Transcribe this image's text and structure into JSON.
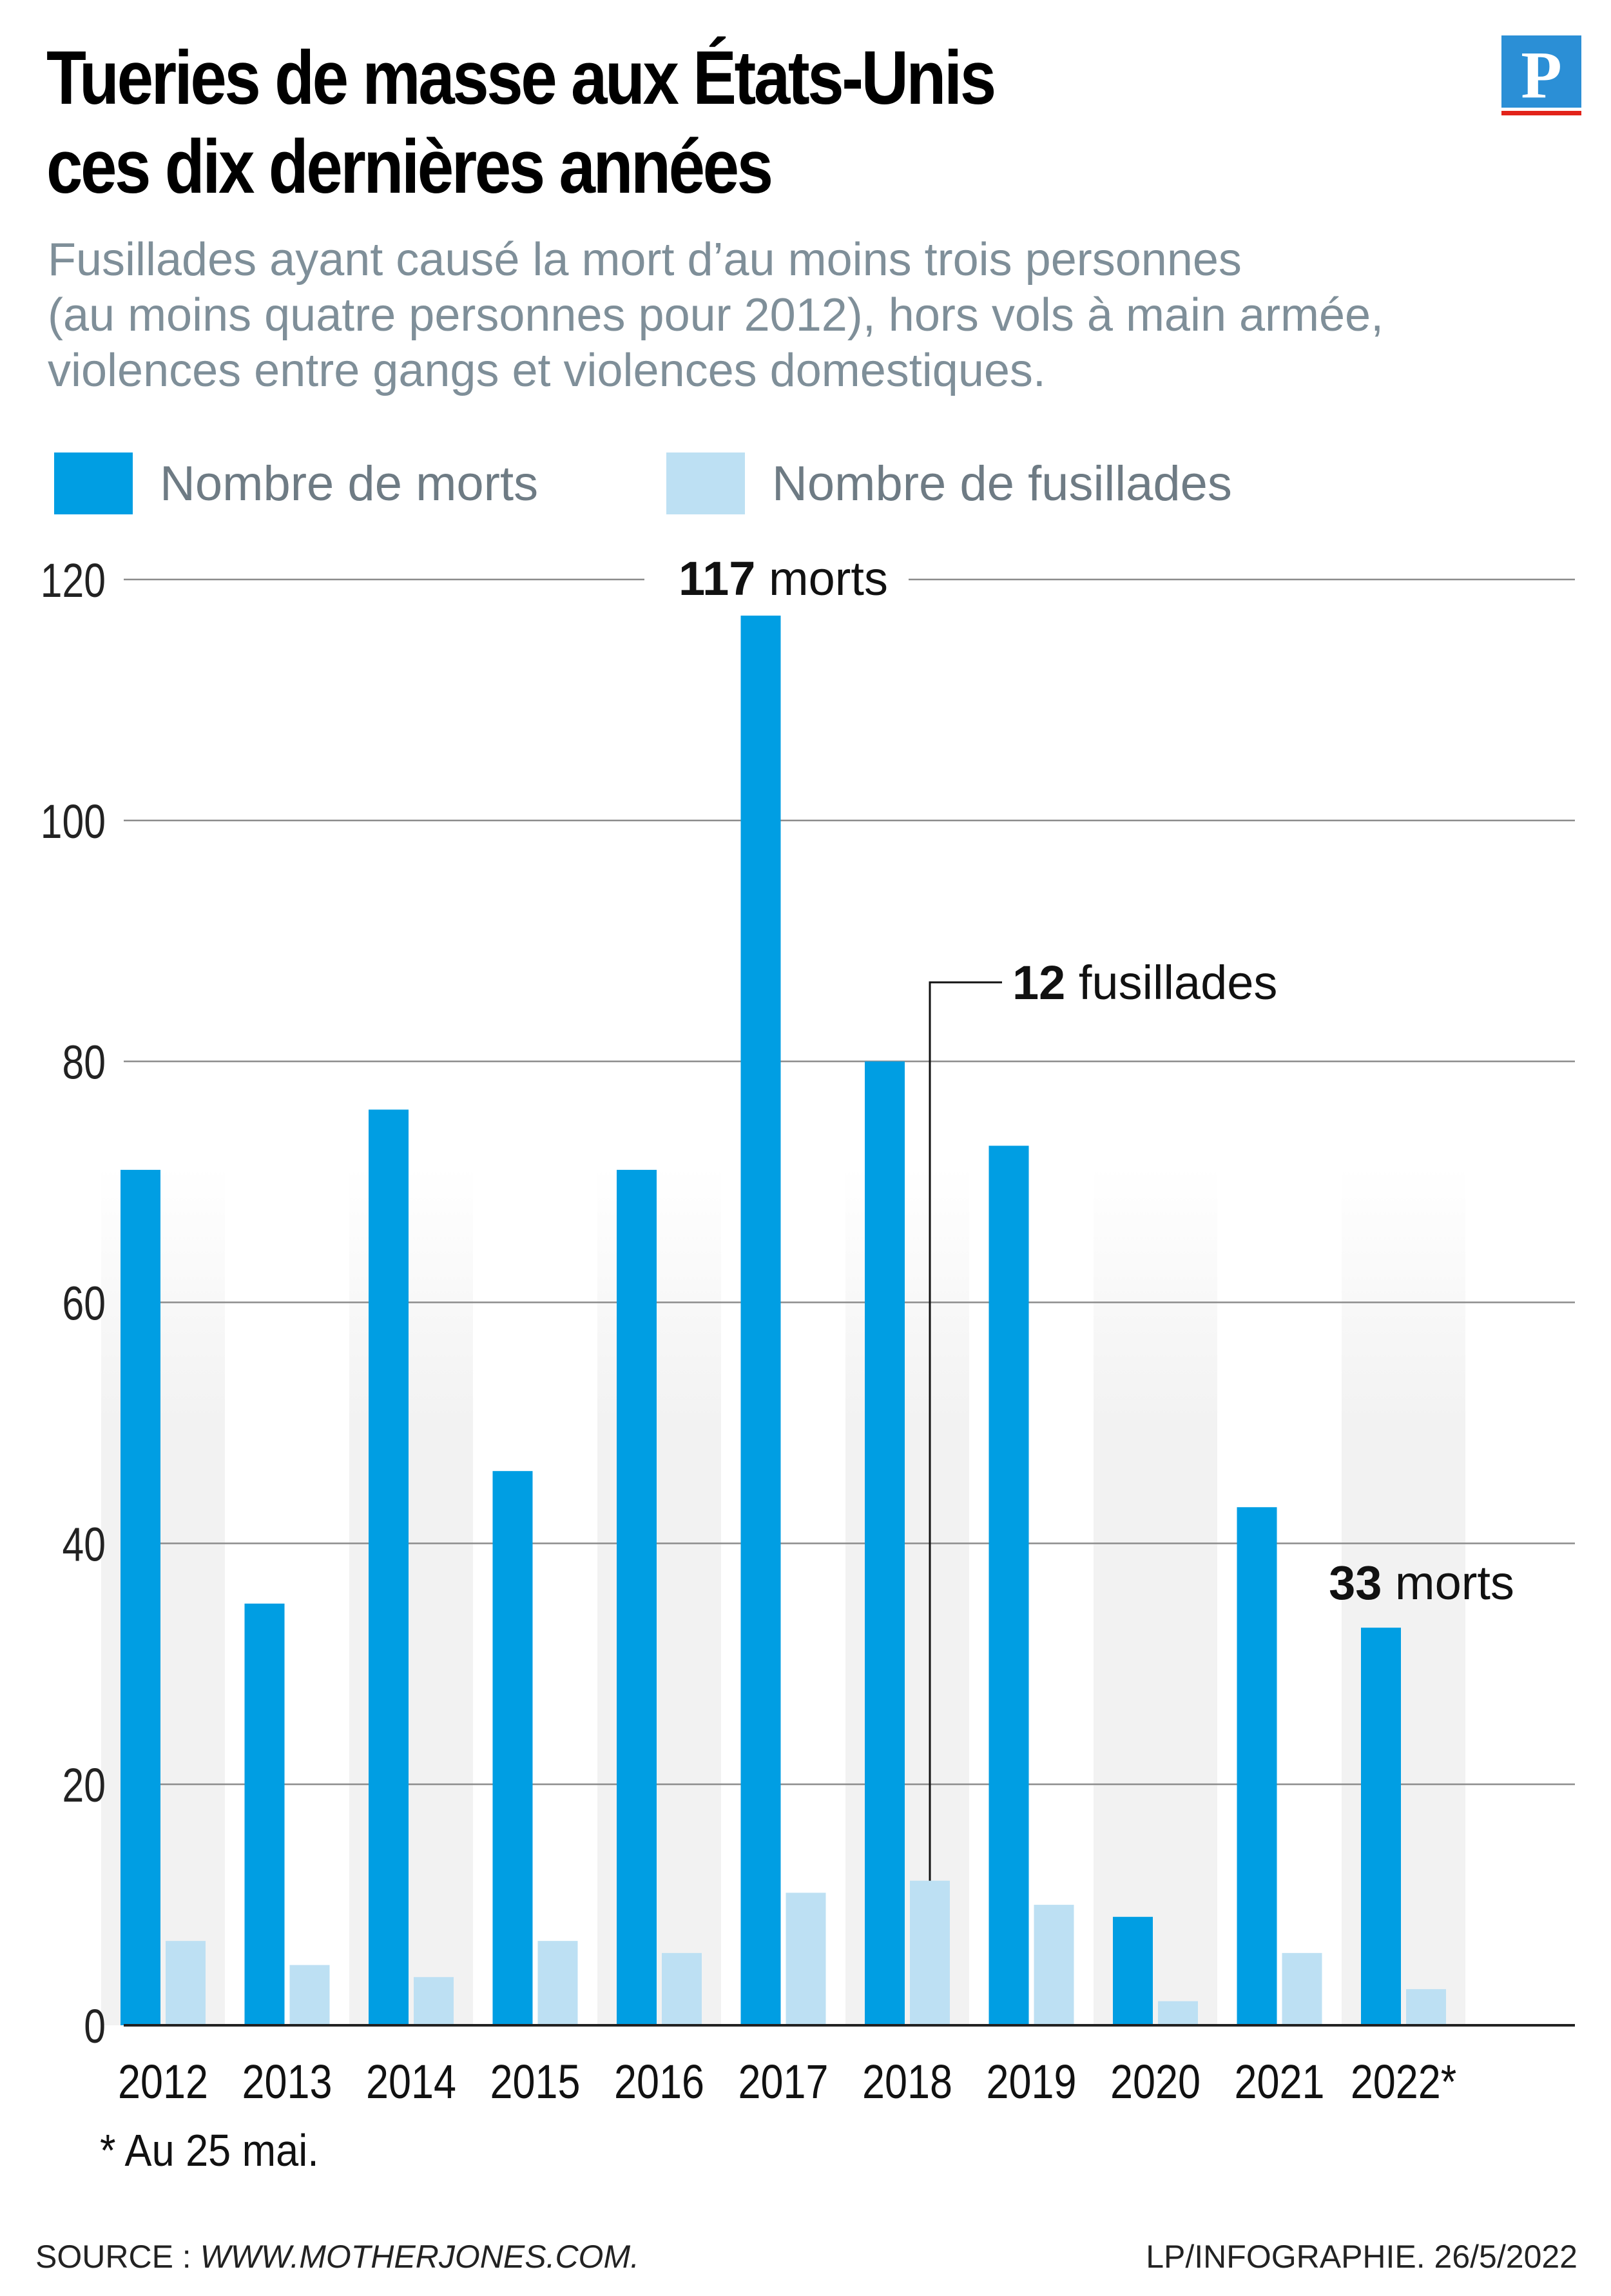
{
  "header": {
    "title_line1": "Tueries de masse aux États-Unis",
    "title_line2": "ces dix dernières années",
    "subtitle_line1": "Fusillades ayant causé la mort d’au moins trois personnes",
    "subtitle_line2": "(au moins quatre personnes pour 2012), hors vols à main armée,",
    "subtitle_line3": "violences entre gangs et violences domestiques.",
    "logo_letter": "P"
  },
  "legend": {
    "deaths": "Nombre de morts",
    "shootings": "Nombre de fusillades"
  },
  "colors": {
    "deaths": "#009ee3",
    "shootings": "#bde0f3",
    "grid": "#8c8c8c",
    "band": "#f2f2f2",
    "logo": "#2b8fd6"
  },
  "chart_data": {
    "type": "bar",
    "categories": [
      "2012",
      "2013",
      "2014",
      "2015",
      "2016",
      "2017",
      "2018",
      "2019",
      "2020",
      "2021",
      "2022*"
    ],
    "series": [
      {
        "name": "Nombre de morts",
        "values": [
          71,
          35,
          76,
          46,
          71,
          117,
          80,
          73,
          9,
          43,
          33
        ]
      },
      {
        "name": "Nombre de fusillades",
        "values": [
          7,
          5,
          4,
          7,
          6,
          11,
          12,
          10,
          2,
          6,
          3
        ]
      }
    ],
    "yticks": [
      0,
      20,
      40,
      60,
      80,
      100,
      120
    ],
    "ylim": [
      0,
      120
    ],
    "grid": true,
    "legend_position": "top-left",
    "annotations": [
      {
        "bold": "117",
        "text": " morts",
        "series": 0,
        "index": 5
      },
      {
        "bold": "12",
        "text": " fusillades",
        "series": 1,
        "index": 6
      },
      {
        "bold": "33",
        "text": " morts",
        "series": 0,
        "index": 10
      }
    ]
  },
  "footnote": "* Au 25 mai.",
  "footer": {
    "source_label": "SOURCE : ",
    "source_url": "WWW.MOTHERJONES.COM.",
    "credit": "LP/INFOGRAPHIE.  26/5/2022"
  }
}
